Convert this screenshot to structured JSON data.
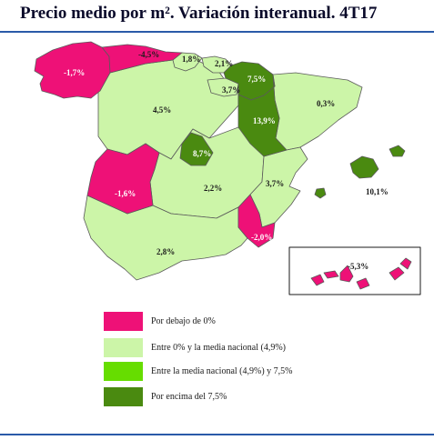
{
  "title": "Precio medio por m². Variación interanual. 4T17",
  "colors": {
    "below_zero": "#ee1177",
    "between_zero_and_mean": "#ccf5a8",
    "between_mean_and_7_5": "#66dd00",
    "above_7_5": "#4a8a10",
    "border": "#5a5a5a"
  },
  "regions": [
    {
      "name": "Galicia",
      "value": "-1,7%",
      "category": "below_zero"
    },
    {
      "name": "Asturias",
      "value": "-4,5%",
      "category": "below_zero"
    },
    {
      "name": "Cantabria",
      "value": "1,8%",
      "category": "between_zero_and_mean"
    },
    {
      "name": "País Vasco",
      "value": "2,1%",
      "category": "between_zero_and_mean"
    },
    {
      "name": "Navarra",
      "value": "7,5%",
      "category": "above_7_5"
    },
    {
      "name": "La Rioja",
      "value": "3,7%",
      "category": "between_zero_and_mean"
    },
    {
      "name": "Castilla y León",
      "value": "4,5%",
      "category": "between_zero_and_mean"
    },
    {
      "name": "Aragón",
      "value": "13,9%",
      "category": "above_7_5"
    },
    {
      "name": "Cataluña",
      "value": "0,3%",
      "category": "between_zero_and_mean"
    },
    {
      "name": "Madrid",
      "value": "8,7%",
      "category": "above_7_5"
    },
    {
      "name": "Extremadura",
      "value": "-1,6%",
      "category": "below_zero"
    },
    {
      "name": "Castilla-La Mancha",
      "value": "2,2%",
      "category": "between_zero_and_mean"
    },
    {
      "name": "Comunidad Valenciana",
      "value": "3,7%",
      "category": "between_zero_and_mean"
    },
    {
      "name": "Baleares",
      "value": "10,1%",
      "category": "above_7_5"
    },
    {
      "name": "Murcia",
      "value": "-2,0%",
      "category": "below_zero"
    },
    {
      "name": "Andalucía",
      "value": "2,8%",
      "category": "between_zero_and_mean"
    },
    {
      "name": "Canarias",
      "value": "-5,3%",
      "category": "below_zero"
    }
  ],
  "legend": [
    {
      "label": "Por debajo de 0%",
      "color": "#ee1177"
    },
    {
      "label": "Entre 0%  y la media nacional (4,9%)",
      "color": "#ccf5a8"
    },
    {
      "label": "Entre la media nacional (4,9%) y 7,5%",
      "color": "#66dd00"
    },
    {
      "label": "Por encima del 7,5%",
      "color": "#4a8a10"
    }
  ]
}
